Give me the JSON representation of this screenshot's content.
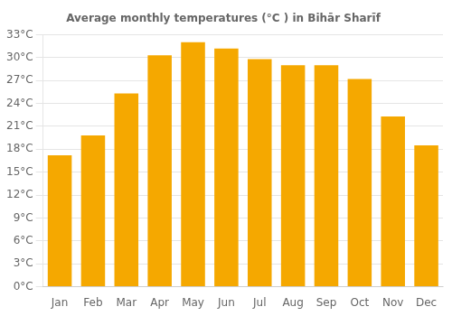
{
  "chart_data": {
    "type": "bar",
    "title": "Average monthly temperatures (°C ) in Bihār Sharīf",
    "categories": [
      "Jan",
      "Feb",
      "Mar",
      "Apr",
      "May",
      "Jun",
      "Jul",
      "Aug",
      "Sep",
      "Oct",
      "Nov",
      "Dec"
    ],
    "values": [
      17.2,
      19.8,
      25.3,
      30.3,
      32.0,
      31.2,
      29.8,
      29.0,
      29.0,
      27.2,
      22.3,
      18.5
    ],
    "color": "#F5A800",
    "ylim": [
      0,
      33
    ],
    "yticks": [
      {
        "value": 0,
        "label": "0°C"
      },
      {
        "value": 3,
        "label": "3°C"
      },
      {
        "value": 6,
        "label": "6°C"
      },
      {
        "value": 9,
        "label": "9°C"
      },
      {
        "value": 12,
        "label": "12°C"
      },
      {
        "value": 15,
        "label": "15°C"
      },
      {
        "value": 18,
        "label": "18°C"
      },
      {
        "value": 21,
        "label": "21°C"
      },
      {
        "value": 24,
        "label": "24°C"
      },
      {
        "value": 27,
        "label": "27°C"
      },
      {
        "value": 30,
        "label": "30°C"
      },
      {
        "value": 33,
        "label": "33°C"
      }
    ],
    "grid": true
  }
}
